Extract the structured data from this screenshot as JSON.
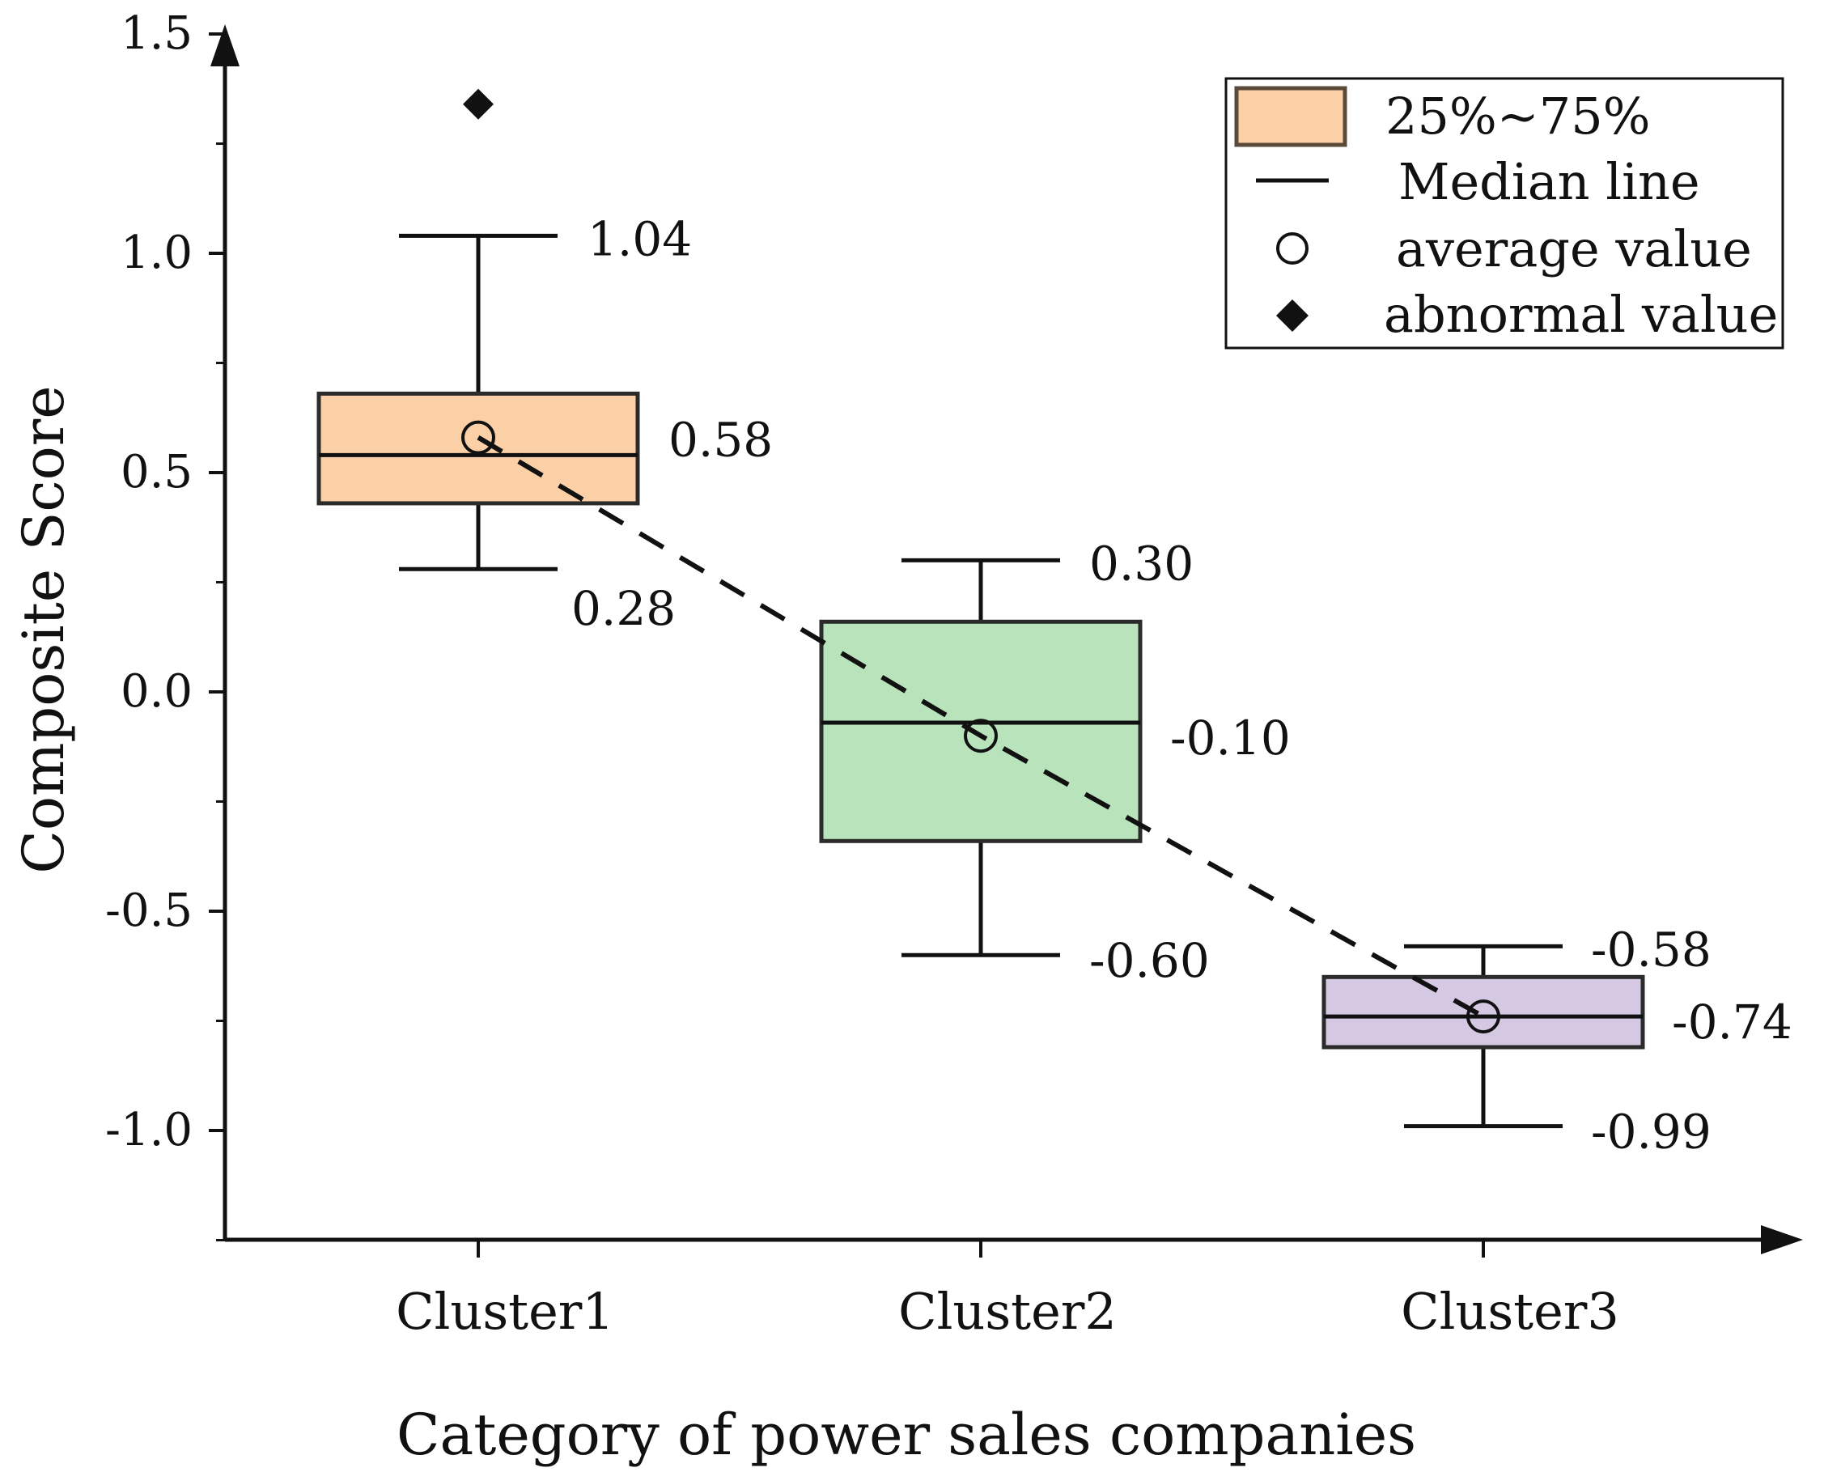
{
  "chart_data": {
    "type": "box",
    "title": "",
    "xlabel": "Category of power sales companies",
    "ylabel": "Composite Score",
    "ylim": [
      -1.25,
      1.5
    ],
    "yticks": [
      "1.5",
      "1.0",
      "0.5",
      "0.0",
      "-0.5",
      "-1.0"
    ],
    "ytick_values": [
      1.5,
      1.0,
      0.5,
      0.0,
      -0.5,
      -1.0
    ],
    "categories": [
      "Cluster1",
      "Cluster2",
      "Cluster3"
    ],
    "series": [
      {
        "name": "Cluster1",
        "whisker_high": 1.04,
        "q3": 0.68,
        "median": 0.54,
        "q1": 0.43,
        "whisker_low": 0.28,
        "mean": 0.58,
        "outliers": [
          1.34
        ],
        "color": "#fbd0a6",
        "labels": {
          "high": "1.04",
          "mean": "0.58",
          "low": "0.28"
        }
      },
      {
        "name": "Cluster2",
        "whisker_high": 0.3,
        "q3": 0.16,
        "median": -0.07,
        "q1": -0.34,
        "whisker_low": -0.6,
        "mean": -0.1,
        "outliers": [],
        "color": "#b8e3bb",
        "labels": {
          "high": "0.30",
          "mean": "-0.10",
          "low": "-0.60"
        }
      },
      {
        "name": "Cluster3",
        "whisker_high": -0.58,
        "q3": -0.65,
        "median": -0.74,
        "q1": -0.81,
        "whisker_low": -0.99,
        "mean": -0.74,
        "outliers": [],
        "color": "#d5c8e2",
        "labels": {
          "high": "-0.58",
          "mean": "-0.74",
          "low": "-0.99"
        }
      }
    ],
    "mean_line_style": "dashed",
    "legend": {
      "position": "top-right",
      "items": [
        {
          "label": "25%~75%",
          "symbol": "box",
          "color": "#fbd0a6"
        },
        {
          "label": "Median line",
          "symbol": "line"
        },
        {
          "label": "average value",
          "symbol": "circle"
        },
        {
          "label": "abnormal value",
          "symbol": "diamond"
        }
      ]
    },
    "colors": {
      "axis": "#111111",
      "box_stroke": "#2b2b2b",
      "legend_box_stroke": "#5a4a3a"
    }
  }
}
